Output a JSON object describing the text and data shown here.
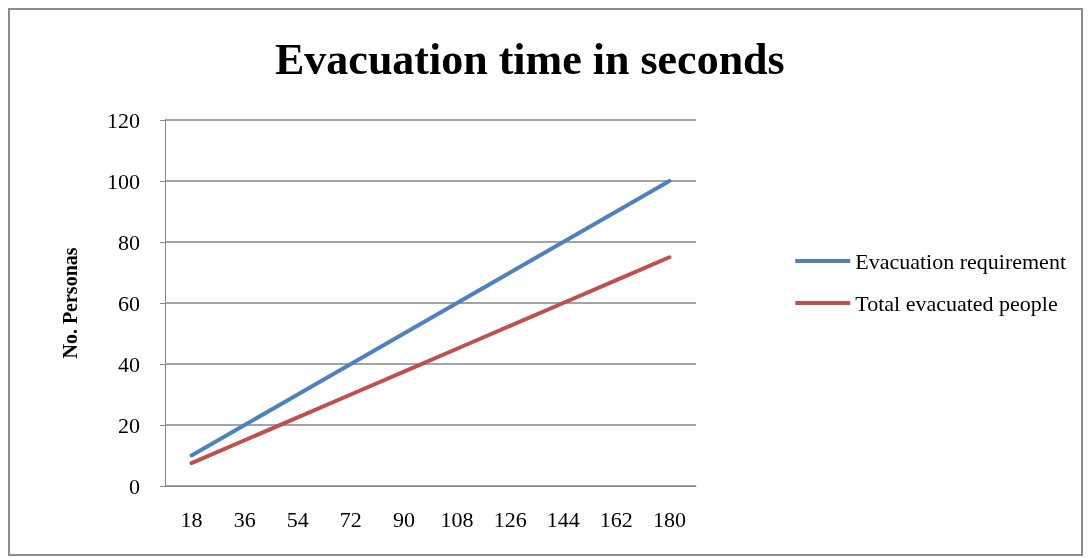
{
  "chart_data": {
    "type": "line",
    "title": "Evacuation time in seconds",
    "ylabel": "No. Personas",
    "categories": [
      "18",
      "36",
      "54",
      "72",
      "90",
      "108",
      "126",
      "144",
      "162",
      "180"
    ],
    "series": [
      {
        "name": "Evacuation requirement",
        "color": "#4f81bd",
        "values": [
          10,
          20,
          30,
          40,
          50,
          60,
          70,
          80,
          90,
          100
        ]
      },
      {
        "name": "Total evacuated people",
        "color": "#c0504d",
        "values": [
          7.5,
          15,
          22.5,
          30,
          37.5,
          45,
          52.5,
          60,
          67.5,
          75
        ]
      }
    ],
    "ylim": [
      0,
      120
    ],
    "yticks": [
      0,
      20,
      40,
      60,
      80,
      100,
      120
    ],
    "grid": "y",
    "legend": "right",
    "marker": "none",
    "line_style": "solid"
  }
}
